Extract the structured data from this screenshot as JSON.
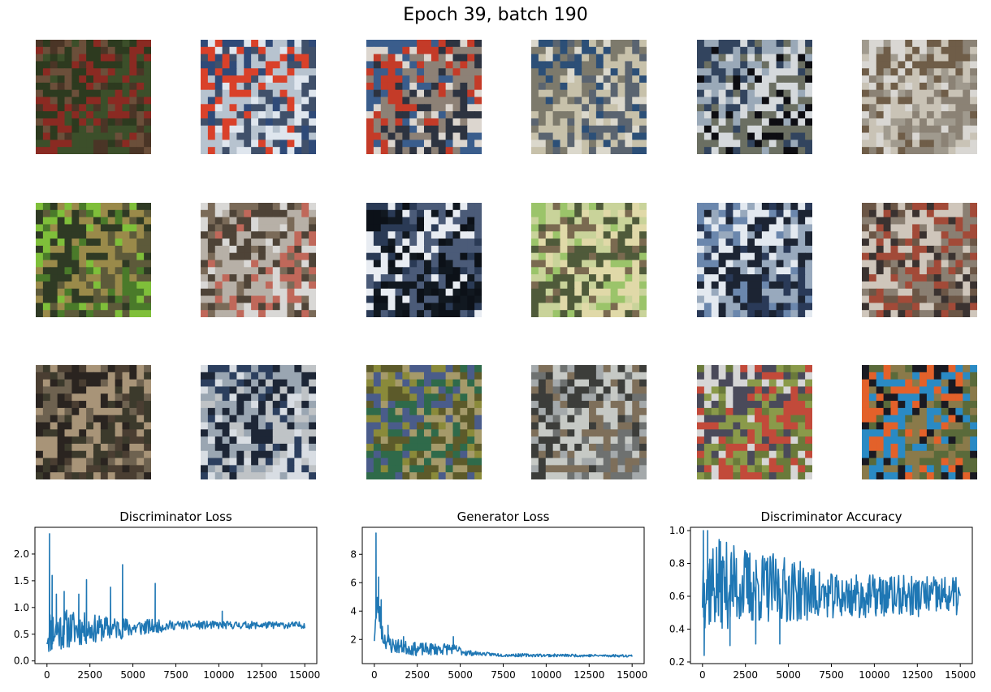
{
  "suptitle": "Epoch 39, batch 190",
  "samples": [
    {
      "colors": [
        "#4a3526",
        "#6b4f3a",
        "#2d3a1f",
        "#8a2a22",
        "#3c4f2a"
      ]
    },
    {
      "colors": [
        "#dfe6ee",
        "#2f4a78",
        "#d9412a",
        "#b7c3cf",
        "#40506a"
      ]
    },
    {
      "colors": [
        "#dcd6cf",
        "#3a5d8c",
        "#c43b28",
        "#8d8176",
        "#2d3340"
      ]
    },
    {
      "colors": [
        "#dbd8cc",
        "#2c4f77",
        "#7d7a6c",
        "#c7c1aa",
        "#5a6470"
      ]
    },
    {
      "colors": [
        "#0d0d12",
        "#32445e",
        "#9aa9b8",
        "#d5d9dc",
        "#6b6f62"
      ]
    },
    {
      "colors": [
        "#a09a8e",
        "#d9d7d3",
        "#6f5d48",
        "#c9c3b6",
        "#8b8275"
      ]
    },
    {
      "colors": [
        "#4a7a2a",
        "#7fbf3a",
        "#2f3a24",
        "#9a8a4a",
        "#5d5a3a"
      ]
    },
    {
      "colors": [
        "#d9d8d6",
        "#7a6a58",
        "#4e4337",
        "#b7b0a7",
        "#c0685a"
      ]
    },
    {
      "colors": [
        "#0c1118",
        "#2a3a55",
        "#e8ecf2",
        "#4b5b78",
        "#111820"
      ]
    },
    {
      "colors": [
        "#9bc46a",
        "#7a6a50",
        "#c9d39a",
        "#4f5a3a",
        "#e0d9a8"
      ]
    },
    {
      "colors": [
        "#2a3a58",
        "#6b87ad",
        "#e3e9f0",
        "#1c2433",
        "#98a9bd"
      ]
    },
    {
      "colors": [
        "#6b5646",
        "#3a3230",
        "#cfc6bb",
        "#a24a38",
        "#8a7f72"
      ]
    },
    {
      "colors": [
        "#4a3e32",
        "#6e6250",
        "#2a2420",
        "#a89478",
        "#3c3a2c"
      ]
    },
    {
      "colors": [
        "#d8dde3",
        "#2c3f5e",
        "#9aa6b2",
        "#1d2636",
        "#bfc3c6"
      ]
    },
    {
      "colors": [
        "#5c5a2a",
        "#8a8a3a",
        "#4a5c8a",
        "#2f6a4a",
        "#a59a6a"
      ]
    },
    {
      "colors": [
        "#6e7170",
        "#a4a9ab",
        "#3c3d3a",
        "#c6c9c5",
        "#7e6f5a"
      ]
    },
    {
      "colors": [
        "#6a7a3a",
        "#d6d6d6",
        "#4a4a5a",
        "#8a9a4a",
        "#c24a3a"
      ]
    },
    {
      "colors": [
        "#5a6a3a",
        "#1a1a22",
        "#e3612a",
        "#2a8ac4",
        "#8a7a4a"
      ]
    }
  ],
  "chart_data": [
    {
      "type": "line",
      "title": "Discriminator Loss",
      "xlim": [
        -700,
        15700
      ],
      "ylim": [
        -0.05,
        2.5
      ],
      "xticks": [
        0,
        2500,
        5000,
        7500,
        10000,
        12500,
        15000
      ],
      "yticks": [
        0.0,
        0.5,
        1.0,
        1.5,
        2.0
      ],
      "ytick_labels": [
        "0.0",
        "0.5",
        "1.0",
        "1.5",
        "2.0"
      ],
      "color": "#1f77b4",
      "series": [
        {
          "start": 0,
          "end": 15000,
          "n": 420,
          "base": [
            [
              0,
              0.55
            ],
            [
              1000,
              0.6
            ],
            [
              2500,
              0.6
            ],
            [
              5000,
              0.62
            ],
            [
              7500,
              0.67
            ],
            [
              15000,
              0.67
            ]
          ],
          "amp": [
            [
              0,
              0.45
            ],
            [
              1500,
              0.35
            ],
            [
              3000,
              0.25
            ],
            [
              5000,
              0.18
            ],
            [
              7500,
              0.08
            ],
            [
              15000,
              0.06
            ]
          ],
          "spikes": [
            [
              150,
              2.38
            ],
            [
              300,
              1.6
            ],
            [
              550,
              1.25
            ],
            [
              1000,
              1.3
            ],
            [
              1850,
              1.25
            ],
            [
              2300,
              1.52
            ],
            [
              3700,
              1.38
            ],
            [
              4400,
              1.8
            ],
            [
              6300,
              1.45
            ],
            [
              10200,
              0.93
            ]
          ],
          "seed": 11
        }
      ]
    },
    {
      "type": "line",
      "title": "Generator Loss",
      "xlim": [
        -700,
        15700
      ],
      "ylim": [
        0.3,
        9.9
      ],
      "xticks": [
        0,
        2500,
        5000,
        7500,
        10000,
        12500,
        15000
      ],
      "yticks": [
        2,
        4,
        6,
        8
      ],
      "ytick_labels": [
        "2",
        "4",
        "6",
        "8"
      ],
      "color": "#1f77b4",
      "series": [
        {
          "start": 0,
          "end": 15000,
          "n": 420,
          "base": [
            [
              0,
              2.5
            ],
            [
              200,
              4.5
            ],
            [
              500,
              2.2
            ],
            [
              1000,
              1.6
            ],
            [
              2500,
              1.3
            ],
            [
              4500,
              1.35
            ],
            [
              5500,
              1.05
            ],
            [
              7500,
              0.9
            ],
            [
              15000,
              0.85
            ]
          ],
          "amp": [
            [
              0,
              1.2
            ],
            [
              600,
              0.7
            ],
            [
              1500,
              0.5
            ],
            [
              4500,
              0.4
            ],
            [
              6000,
              0.12
            ],
            [
              15000,
              0.08
            ]
          ],
          "spikes": [
            [
              100,
              9.5
            ],
            [
              250,
              6.4
            ],
            [
              400,
              4.8
            ],
            [
              800,
              3.0
            ],
            [
              1700,
              2.2
            ],
            [
              4600,
              2.2
            ]
          ],
          "seed": 23
        }
      ]
    },
    {
      "type": "line",
      "title": "Discriminator Accuracy",
      "xlim": [
        -700,
        15700
      ],
      "ylim": [
        0.19,
        1.02
      ],
      "xticks": [
        0,
        2500,
        5000,
        7500,
        10000,
        12500,
        15000
      ],
      "yticks": [
        0.2,
        0.4,
        0.6,
        0.8,
        1.0
      ],
      "ytick_labels": [
        "0.2",
        "0.4",
        "0.6",
        "0.8",
        "1.0"
      ],
      "color": "#1f77b4",
      "series": [
        {
          "start": 0,
          "end": 15000,
          "n": 420,
          "base": [
            [
              0,
              0.68
            ],
            [
              2500,
              0.66
            ],
            [
              5000,
              0.64
            ],
            [
              7500,
              0.6
            ],
            [
              15000,
              0.6
            ]
          ],
          "amp": [
            [
              0,
              0.3
            ],
            [
              2500,
              0.24
            ],
            [
              5000,
              0.2
            ],
            [
              7500,
              0.14
            ],
            [
              15000,
              0.12
            ]
          ],
          "spikes": [
            [
              50,
              1.0
            ],
            [
              100,
              0.24
            ],
            [
              300,
              1.0
            ],
            [
              1600,
              0.3
            ],
            [
              3100,
              0.31
            ],
            [
              4500,
              0.31
            ]
          ],
          "seed": 37
        }
      ]
    }
  ]
}
